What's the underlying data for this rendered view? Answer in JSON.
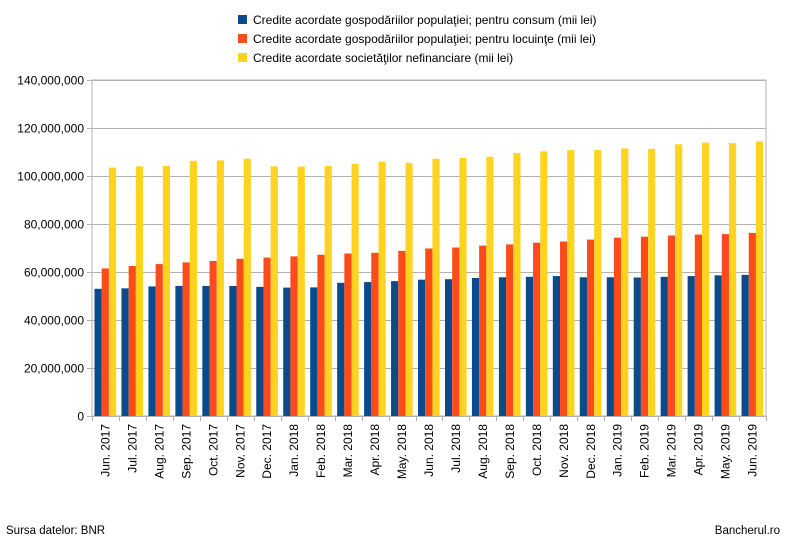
{
  "chart_data": {
    "type": "bar",
    "categories": [
      "Jun. 2017",
      "Jul. 2017",
      "Aug. 2017",
      "Sep. 2017",
      "Oct. 2017",
      "Nov. 2017",
      "Dec. 2017",
      "Jan. 2018",
      "Feb. 2018",
      "Mar. 2018",
      "Apr. 2018",
      "May. 2018",
      "Jun. 2018",
      "Jul. 2018",
      "Aug. 2018",
      "Sep. 2018",
      "Oct. 2018",
      "Nov. 2018",
      "Dec. 2018",
      "Jan. 2019",
      "Feb. 2019",
      "Mar. 2019",
      "Apr. 2019",
      "May. 2019",
      "Jun. 2019"
    ],
    "series": [
      {
        "name": "Credite acordate gospodăriilor populaţiei; pentru consum (mii lei)",
        "color": "#0b4b8c",
        "values": [
          53000000,
          53200000,
          54000000,
          54200000,
          54200000,
          54200000,
          53800000,
          53500000,
          53600000,
          55500000,
          55800000,
          56200000,
          56800000,
          57000000,
          57500000,
          57800000,
          58000000,
          58300000,
          57800000,
          57800000,
          57700000,
          58000000,
          58300000,
          58600000,
          58800000
        ]
      },
      {
        "name": "Credite acordate gospodăriilor populaţiei; pentru locuinţe (mii lei)",
        "color": "#ff4a1c",
        "values": [
          61500000,
          62500000,
          63300000,
          64000000,
          64600000,
          65500000,
          66000000,
          66500000,
          67200000,
          67700000,
          68000000,
          68800000,
          69800000,
          70200000,
          71000000,
          71500000,
          72200000,
          72700000,
          73500000,
          74300000,
          74700000,
          75200000,
          75600000,
          75800000,
          76300000
        ]
      },
      {
        "name": "Credite acordate societăţilor nefinanciare (mii lei)",
        "color": "#ffd320",
        "values": [
          103500000,
          104000000,
          104200000,
          106300000,
          106500000,
          107200000,
          104000000,
          103900000,
          104200000,
          105000000,
          106000000,
          105500000,
          107200000,
          107500000,
          108000000,
          109500000,
          110300000,
          110800000,
          110800000,
          111500000,
          111300000,
          113200000,
          113900000,
          113700000,
          114400000
        ]
      }
    ],
    "ylim": [
      0,
      140000000
    ],
    "yticks": [
      0,
      20000000,
      40000000,
      60000000,
      80000000,
      100000000,
      120000000,
      140000000
    ],
    "ytick_labels": [
      "0",
      "20,000,000",
      "40,000,000",
      "60,000,000",
      "80,000,000",
      "100,000,000",
      "120,000,000",
      "140,000,000"
    ],
    "grid": true,
    "legend_position": "top-center"
  },
  "footer": {
    "source": "Sursa datelor: BNR",
    "brand": "Bancherul.ro"
  }
}
